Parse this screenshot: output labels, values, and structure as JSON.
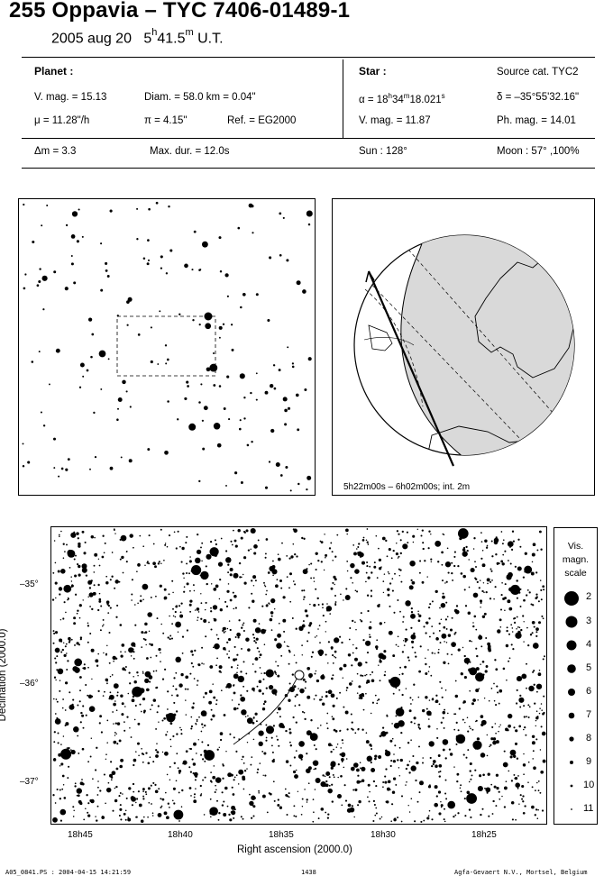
{
  "header": {
    "title": "255 Oppavia  –  TYC 7406-01489-1",
    "date": "2005 aug 20",
    "time_h": "5",
    "time_h_sup": "h",
    "time_m": "41.5",
    "time_m_sup": "m",
    "time_ut": "U.T."
  },
  "planet": {
    "label": "Planet :",
    "vmag": "V. mag. = 15.13",
    "diam": "Diam. = 58.0 km = 0.04\"",
    "mu": "μ =  11.28\"/h",
    "pi": "π =  4.15\"",
    "ref": "Ref. = EG2000",
    "dm": "Δm = 3.3",
    "maxdur": "Max. dur. = 12.0s"
  },
  "star": {
    "label": "Star :",
    "source": "Source cat.  TYC2",
    "alpha": "α = 18",
    "alpha_h": "h",
    "alpha_m_val": "34",
    "alpha_m": "m",
    "alpha_s_val": "18.021",
    "alpha_s": "s",
    "delta": "δ = –35°55'32.16\"",
    "vmag": "V. mag. = 11.87",
    "phmag": "Ph. mag. = 14.01",
    "sun": "Sun : 128°",
    "moon": "Moon :  57° ,100%"
  },
  "globe": {
    "caption": "5h22m00s –  6h02m00s; int. 2m"
  },
  "skymap": {
    "y_label": "Declination (2000.0)",
    "x_label": "Right ascension (2000.0)",
    "y_ticks": [
      "–35°",
      "–36°",
      "–37°"
    ],
    "x_ticks": [
      "18h45",
      "18h40",
      "18h35",
      "18h30",
      "18h25"
    ]
  },
  "scale": {
    "title_line1": "Vis.",
    "title_line2": "magn.",
    "title_line3": "scale",
    "magnitudes": [
      "2",
      "3",
      "4",
      "5",
      "6",
      "7",
      "8",
      "9",
      "10",
      "11"
    ]
  },
  "footer": {
    "left": "A05_0841.PS : 2004-04-15 14:21:59",
    "center": "1438",
    "right": "Agfa-Gevaert N.V., Mortsel, Belgium"
  }
}
